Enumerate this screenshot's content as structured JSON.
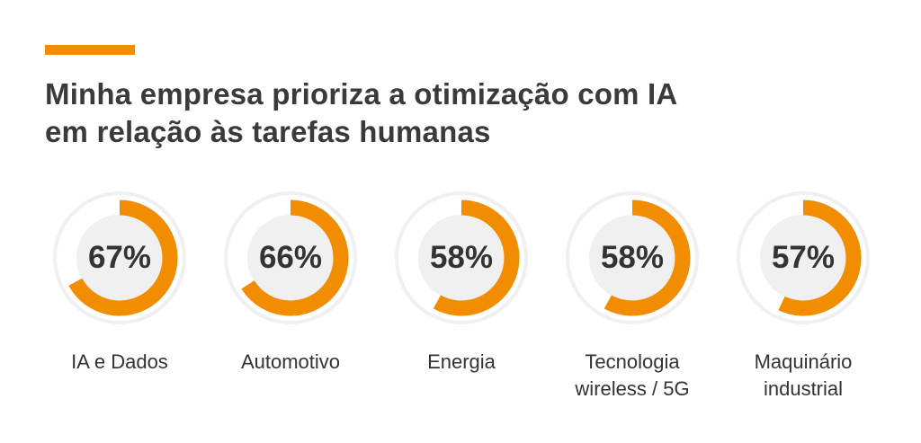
{
  "title_line1": "Minha empresa prioriza a otimização com IA",
  "title_line2": "em relação às tarefas humanas",
  "colors": {
    "accent": "#f28c00",
    "track": "#f0f0f0",
    "text": "#333333"
  },
  "chart_data": {
    "type": "pie",
    "subtype": "donut-progress",
    "title": "Minha empresa prioriza a otimização com IA em relação às tarefas humanas",
    "categories": [
      "IA e Dados",
      "Automotivo",
      "Energia",
      "Tecnologia wireless / 5G",
      "Maquinário industrial"
    ],
    "values": [
      67,
      66,
      58,
      58,
      57
    ],
    "value_labels": [
      "67%",
      "66%",
      "58%",
      "58%",
      "57%"
    ],
    "label_lines": [
      [
        "IA e Dados"
      ],
      [
        "Automotivo"
      ],
      [
        "Energia"
      ],
      [
        "Tecnologia",
        "wireless / 5G"
      ],
      [
        "Maquinário",
        "industrial"
      ]
    ],
    "ylim": [
      0,
      100
    ]
  }
}
